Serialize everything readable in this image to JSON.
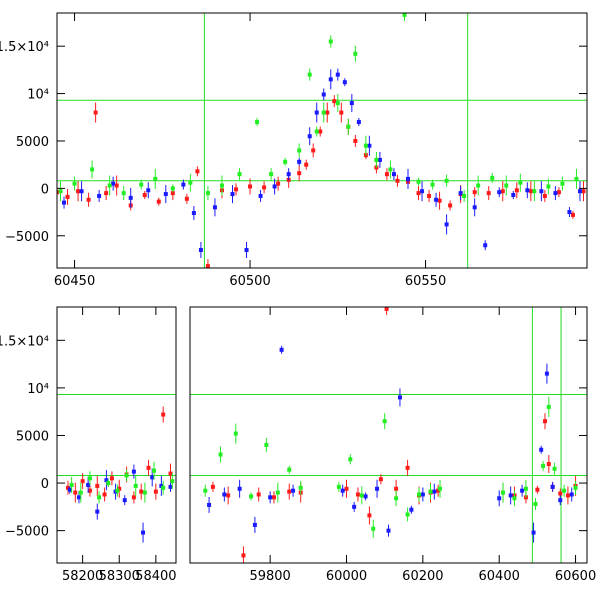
{
  "colors": {
    "blue": "#1a1aff",
    "red": "#ff1a1a",
    "green": "#22ee22",
    "frame": "#000000",
    "guide": "#22dd22"
  },
  "chart_data": [
    {
      "type": "scatter",
      "title": "",
      "xlabel": "",
      "ylabel": "",
      "xlim": [
        60445,
        60596
      ],
      "ylim": [
        -8400,
        18500
      ],
      "grid": false,
      "x_ticks": [
        60450,
        60500,
        60550
      ],
      "x_tick_labels": [
        "60450",
        "60500",
        "60550"
      ],
      "y_ticks": [
        15000,
        10000,
        5000,
        0,
        -5000
      ],
      "y_tick_labels": [
        "1.5×10⁴",
        "10⁴",
        "5000",
        "0",
        "−5000"
      ],
      "reference_lines": {
        "horizontal": [
          9300,
          800
        ],
        "vertical": [
          60487,
          60562
        ]
      },
      "series": [
        {
          "color": "red",
          "x": [
            60445,
            60448,
            60451,
            60454,
            60456,
            60459,
            60462,
            60466,
            60470,
            60474,
            60478,
            60482,
            60485,
            60488,
            60492,
            60496,
            60500,
            60504,
            60508,
            60511,
            60514,
            60516,
            60518,
            60520,
            60522,
            60524,
            60526,
            60528,
            60530,
            60533,
            60536,
            60539,
            60542,
            60545,
            60548,
            60551,
            60554,
            60557,
            60560,
            60564,
            60568,
            60572,
            60576,
            60580,
            60584,
            60588,
            60592,
            60595
          ],
          "y": [
            -400,
            -900,
            -300,
            -1200,
            8000,
            -500,
            300,
            -1800,
            -700,
            -1400,
            -500,
            -1100,
            1800,
            -8200,
            -200,
            -100,
            200,
            100,
            500,
            900,
            1600,
            2500,
            4000,
            6000,
            8000,
            9200,
            8000,
            6500,
            5000,
            3500,
            2200,
            1500,
            800,
            700,
            -500,
            -800,
            -1300,
            -1800,
            -600,
            -400,
            -500,
            -300,
            -200,
            -300,
            -800,
            -400,
            -2800,
            -300
          ]
        },
        {
          "color": "blue",
          "x": [
            60447,
            60452,
            60457,
            60461,
            60466,
            60471,
            60476,
            60481,
            60484,
            60486,
            60490,
            60495,
            60499,
            60503,
            60507,
            60511,
            60514,
            60517,
            60519,
            60521,
            60523,
            60525,
            60527,
            60529,
            60531,
            60534,
            60537,
            60541,
            60545,
            60549,
            60553,
            60556,
            60560,
            60564,
            60567,
            60571,
            60575,
            60579,
            60583,
            60587,
            60591,
            60594
          ],
          "y": [
            -1500,
            -300,
            -800,
            500,
            -1000,
            -200,
            -600,
            400,
            -2600,
            -6500,
            -2000,
            -600,
            -6500,
            -800,
            200,
            1500,
            2800,
            5500,
            8000,
            9900,
            11500,
            12000,
            11200,
            9000,
            7000,
            4500,
            3000,
            1500,
            1000,
            -300,
            -1200,
            -3800,
            -500,
            -2000,
            -6000,
            -400,
            -700,
            -200,
            -300,
            -500,
            -2500,
            -300
          ]
        },
        {
          "color": "green",
          "x": [
            60446,
            60450,
            60455,
            60460,
            60464,
            60469,
            60473,
            60478,
            60483,
            60488,
            60492,
            60497,
            60502,
            60506,
            60510,
            60514,
            60517,
            60519,
            60521,
            60523,
            60525,
            60528,
            60530,
            60533,
            60536,
            60540,
            60544,
            60548,
            60552,
            60556,
            60561,
            60565,
            60569,
            60573,
            60577,
            60581,
            60585,
            60589,
            60593
          ],
          "y": [
            -300,
            500,
            2000,
            300,
            -500,
            400,
            1000,
            0,
            600,
            -500,
            300,
            1500,
            7000,
            1500,
            2800,
            4000,
            12000,
            6000,
            8000,
            15500,
            9000,
            6500,
            14200,
            4500,
            3000,
            2000,
            18300,
            700,
            400,
            800,
            -800,
            300,
            1100,
            300,
            600,
            -300,
            200,
            500,
            1000
          ]
        }
      ]
    },
    {
      "type": "scatter",
      "title": "",
      "xlabel": "",
      "ylabel": "",
      "ylim": [
        -8400,
        18500
      ],
      "grid": false,
      "x_ticks": [
        58200,
        58300,
        58400,
        59800,
        60000,
        60200,
        60400,
        60600
      ],
      "x_tick_labels": [
        "58200",
        "58300",
        "58400",
        "59800",
        "60000",
        "60200",
        "60400",
        "60600"
      ],
      "y_ticks": [
        15000,
        10000,
        5000,
        0,
        -5000
      ],
      "y_tick_labels": [
        "1.5×10⁴",
        "10⁴",
        "5000",
        "0",
        "−5000"
      ],
      "broken_axis": [
        {
          "xlim": [
            58130,
            58455
          ]
        },
        {
          "xlim": [
            59590,
            60630
          ]
        }
      ],
      "reference_lines": {
        "horizontal": [
          9300,
          800
        ],
        "vertical": [
          60487,
          60562
        ]
      },
      "series": [
        {
          "color": "red",
          "x": [
            58160,
            58180,
            58200,
            58220,
            58240,
            58260,
            58280,
            58300,
            58320,
            58340,
            58360,
            58380,
            58400,
            58420,
            58440,
            59650,
            59690,
            59730,
            59770,
            59810,
            59850,
            59880,
            60000,
            60030,
            60060,
            60090,
            60105,
            60130,
            60160,
            60190,
            60220,
            60240,
            60410,
            60440,
            60470,
            60500,
            60520,
            60530,
            60540,
            60560,
            60580,
            60600
          ],
          "y": [
            -500,
            -1000,
            200,
            -800,
            -300,
            -1200,
            500,
            -600,
            900,
            -1500,
            -900,
            1600,
            -900,
            7200,
            1000,
            -400,
            -1300,
            -7600,
            -1200,
            -1500,
            -900,
            -1000,
            -600,
            -1200,
            -3400,
            400,
            18300,
            -600,
            1600,
            -1300,
            -1000,
            -800,
            -1000,
            -1300,
            -1500,
            -700,
            6500,
            2000,
            -400,
            -1100,
            -1300,
            -300
          ]
        },
        {
          "color": "blue",
          "x": [
            58165,
            58190,
            58215,
            58240,
            58265,
            58290,
            58315,
            58340,
            58365,
            58390,
            58415,
            58440,
            59640,
            59680,
            59720,
            59760,
            59800,
            59830,
            59860,
            59990,
            60020,
            60050,
            60080,
            60110,
            60140,
            60170,
            60200,
            60230,
            60400,
            60430,
            60460,
            60490,
            60510,
            60525,
            60540,
            60560,
            60590
          ],
          "y": [
            -700,
            -1500,
            -200,
            -3000,
            300,
            -900,
            -1800,
            1200,
            -5200,
            600,
            -300,
            -400,
            -2300,
            -1200,
            -600,
            -4400,
            -1500,
            14000,
            -800,
            -800,
            -2500,
            -1400,
            -600,
            -5000,
            9000,
            -2800,
            -1200,
            -900,
            -1600,
            -1300,
            -800,
            -5200,
            3500,
            11500,
            -400,
            -1800,
            -1200
          ]
        },
        {
          "color": "green",
          "x": [
            58170,
            58195,
            58220,
            58245,
            58270,
            58295,
            58320,
            58345,
            58370,
            58395,
            58420,
            58445,
            59630,
            59670,
            59710,
            59750,
            59790,
            59820,
            59850,
            59880,
            59980,
            60010,
            60040,
            60070,
            60100,
            60130,
            60160,
            60190,
            60220,
            60245,
            60410,
            60440,
            60470,
            60495,
            60515,
            60530,
            60545,
            60570,
            60600
          ],
          "y": [
            -200,
            -1000,
            500,
            -1500,
            0,
            -800,
            800,
            -300,
            -1000,
            1300,
            -500,
            200,
            -800,
            3000,
            5200,
            -1400,
            4000,
            -1000,
            1400,
            -500,
            -400,
            2500,
            -1300,
            -4800,
            6500,
            -1600,
            -3300,
            -1200,
            -900,
            -600,
            -1000,
            -1600,
            -600,
            -2200,
            1800,
            8000,
            1500,
            -800,
            -500
          ]
        }
      ]
    }
  ]
}
